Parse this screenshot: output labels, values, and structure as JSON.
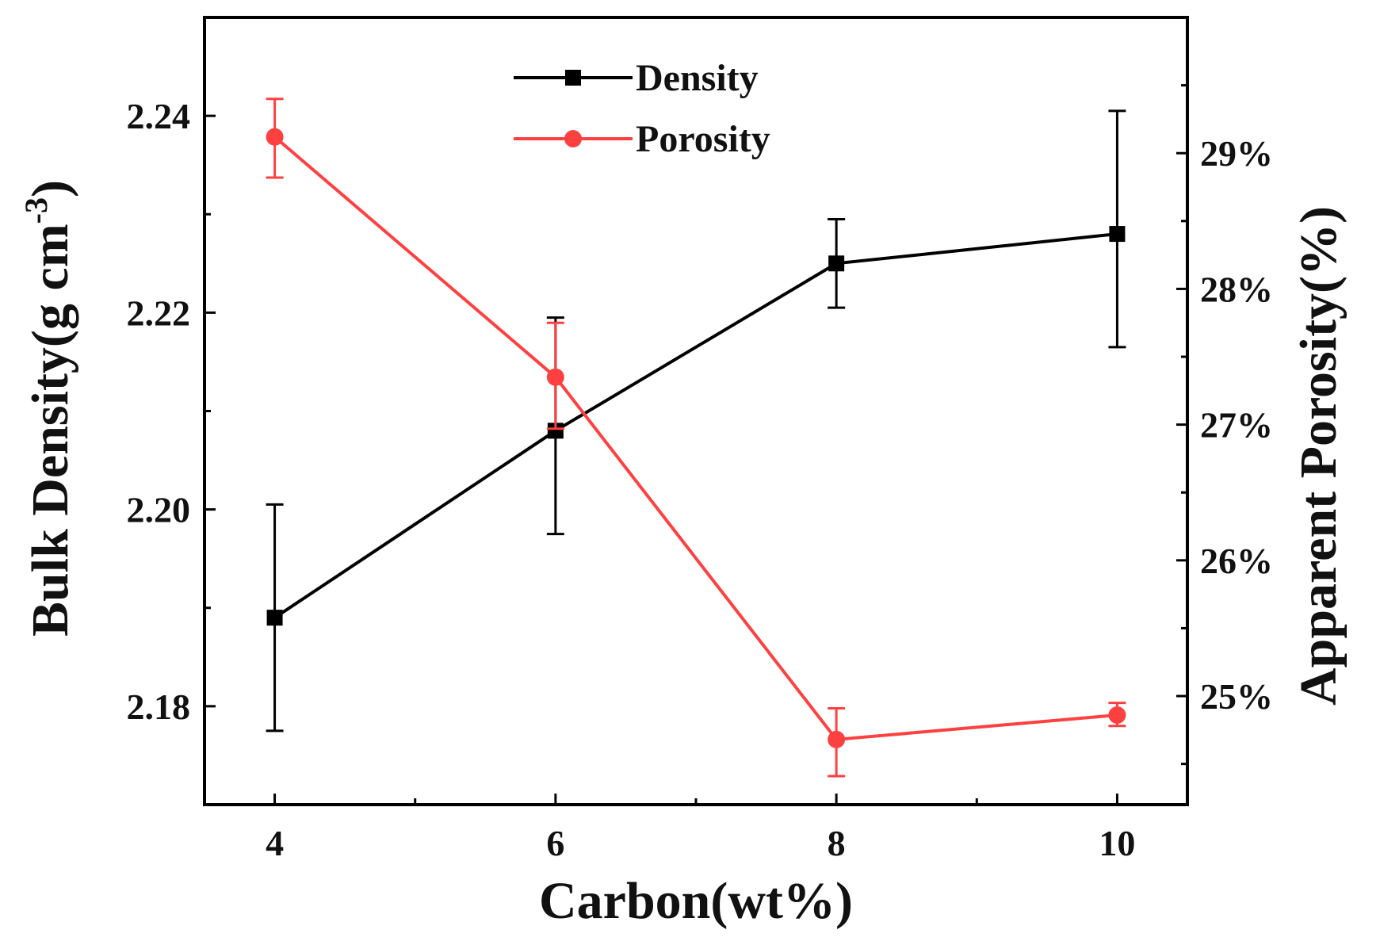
{
  "chart_data": {
    "type": "line",
    "x": [
      4,
      6,
      8,
      10
    ],
    "xlabel": "Carbon(wt%)",
    "xlim": [
      3.5,
      10.5
    ],
    "xticks": [
      4,
      6,
      8,
      10
    ],
    "xtick_labels": [
      "4",
      "6",
      "8",
      "10"
    ],
    "y_left": {
      "label_main": "Bulk Density(g cm",
      "label_sup": "-3",
      "label_close": ")",
      "lim": [
        2.17,
        2.25
      ],
      "ticks": [
        2.18,
        2.2,
        2.22,
        2.24
      ],
      "tick_labels": [
        "2.18",
        "2.20",
        "2.22",
        "2.24"
      ]
    },
    "y_right": {
      "label": "Apparent Porosity(%)",
      "lim": [
        24.2,
        30.0
      ],
      "ticks": [
        25,
        26,
        27,
        28,
        29
      ],
      "tick_labels": [
        "25%",
        "26%",
        "27%",
        "28%",
        "29%"
      ]
    },
    "series": [
      {
        "name": "Density",
        "axis": "left",
        "color": "#000000",
        "marker": "square",
        "values": [
          2.189,
          2.208,
          2.225,
          2.228
        ],
        "err_low": [
          2.1775,
          2.1975,
          2.2205,
          2.2165
        ],
        "err_high": [
          2.2005,
          2.2195,
          2.2295,
          2.2405
        ]
      },
      {
        "name": "Porosity",
        "axis": "right",
        "color": "#ff4040",
        "marker": "circle",
        "values": [
          29.12,
          27.35,
          24.68,
          24.86
        ],
        "err_low": [
          28.82,
          26.97,
          24.41,
          24.78
        ],
        "err_high": [
          29.4,
          27.75,
          24.91,
          24.95
        ]
      }
    ],
    "legend": {
      "position": "top-center",
      "entries": [
        "Density",
        "Porosity"
      ]
    },
    "grid": false
  }
}
